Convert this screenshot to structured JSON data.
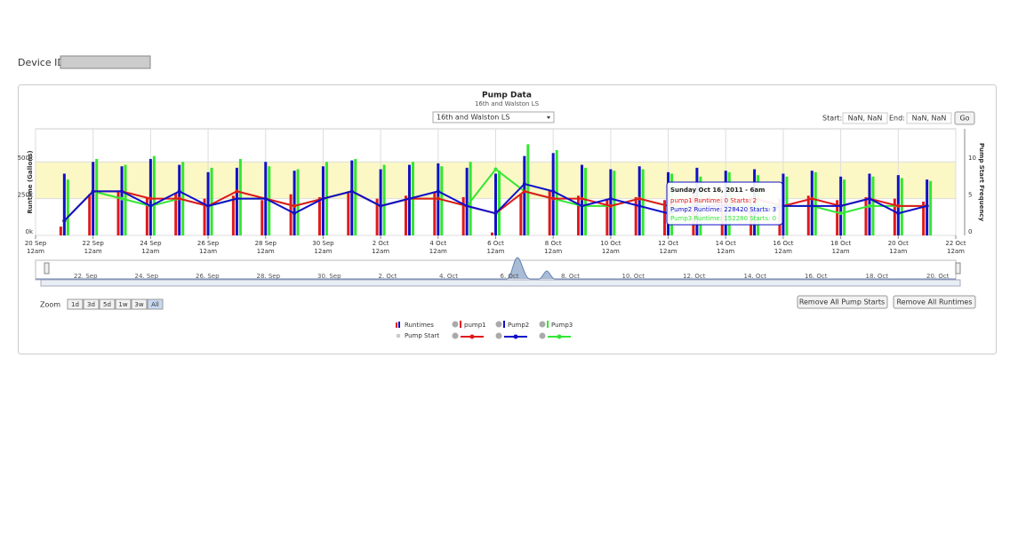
{
  "header": {
    "device_label": "Device ID",
    "device_value": ""
  },
  "controls": {
    "station": "16th and Walston LS",
    "start_label": "Start:",
    "start_value": "NaN, NaN",
    "end_label": "End:",
    "end_value": "NaN, NaN",
    "go": "Go",
    "zoom_label": "Zoom",
    "zoom": [
      "1d",
      "3d",
      "5d",
      "1w",
      "3w",
      "All"
    ],
    "zoom_selected": "All",
    "remove_starts": "Remove All Pump Starts",
    "remove_runtimes": "Remove All Runtimes"
  },
  "chart_data": {
    "type": "bar",
    "title": "Pump Data",
    "subtitle": "16th and Walston LS",
    "y_label": "Runtime (Gallons)",
    "y2_label": "Pump Start Frequency",
    "x": [
      "2011-09-21",
      "2011-09-22",
      "2011-09-23",
      "2011-09-24",
      "2011-09-25",
      "2011-09-26",
      "2011-09-27",
      "2011-09-28",
      "2011-09-29",
      "2011-09-30",
      "2011-10-01",
      "2011-10-02",
      "2011-10-03",
      "2011-10-04",
      "2011-10-05",
      "2011-10-06",
      "2011-10-07",
      "2011-10-08",
      "2011-10-09",
      "2011-10-10",
      "2011-10-11",
      "2011-10-12",
      "2011-10-13",
      "2011-10-14",
      "2011-10-15",
      "2011-10-16",
      "2011-10-17",
      "2011-10-18",
      "2011-10-19",
      "2011-10-20",
      "2011-10-21"
    ],
    "xlim": [
      "2011-09-20",
      "2011-10-22"
    ],
    "xticks": [
      {
        "value": "2011-09-20",
        "label": "20 Sep",
        "sub": "12am"
      },
      {
        "value": "2011-09-22",
        "label": "22 Sep",
        "sub": "12am"
      },
      {
        "value": "2011-09-24",
        "label": "24 Sep",
        "sub": "12am"
      },
      {
        "value": "2011-09-26",
        "label": "26 Sep",
        "sub": "12am"
      },
      {
        "value": "2011-09-28",
        "label": "28 Sep",
        "sub": "12am"
      },
      {
        "value": "2011-09-30",
        "label": "30 Sep",
        "sub": "12am"
      },
      {
        "value": "2011-10-02",
        "label": "2 Oct",
        "sub": "12am"
      },
      {
        "value": "2011-10-04",
        "label": "4 Oct",
        "sub": "12am"
      },
      {
        "value": "2011-10-06",
        "label": "6 Oct",
        "sub": "12am"
      },
      {
        "value": "2011-10-08",
        "label": "8 Oct",
        "sub": "12am"
      },
      {
        "value": "2011-10-10",
        "label": "10 Oct",
        "sub": "12am"
      },
      {
        "value": "2011-10-12",
        "label": "12 Oct",
        "sub": "12am"
      },
      {
        "value": "2011-10-14",
        "label": "14 Oct",
        "sub": "12am"
      },
      {
        "value": "2011-10-16",
        "label": "16 Oct",
        "sub": "12am"
      },
      {
        "value": "2011-10-18",
        "label": "18 Oct",
        "sub": "12am"
      },
      {
        "value": "2011-10-20",
        "label": "20 Oct",
        "sub": "12am"
      },
      {
        "value": "2011-10-22",
        "label": "22 Oct",
        "sub": "12am"
      }
    ],
    "ylim": [
      0,
      725000
    ],
    "yticks": [
      {
        "value": 0,
        "label": "0k"
      },
      {
        "value": 250000,
        "label": "250k"
      },
      {
        "value": 500000,
        "label": "500k"
      }
    ],
    "y2lim": [
      0,
      14.5
    ],
    "y2ticks": [
      0,
      5,
      10
    ],
    "plot_band": [
      250000,
      500000
    ],
    "plot_band_color": "#fbf8c6",
    "grid": true,
    "legend_runtimes": "Runtimes",
    "legend_starts": "Pump Start",
    "series": [
      {
        "name": "pump1",
        "type": "bar",
        "color": "#e0191b",
        "values": [
          60000,
          280000,
          300000,
          260000,
          290000,
          250000,
          270000,
          240000,
          280000,
          260000,
          300000,
          250000,
          270000,
          290000,
          260000,
          20000,
          280000,
          310000,
          270000,
          250000,
          260000,
          240000,
          280000,
          270000,
          260000,
          250000,
          270000,
          240000,
          260000,
          250000,
          230000
        ]
      },
      {
        "name": "Pump2",
        "type": "bar",
        "color": "#1010c8",
        "values": [
          420000,
          500000,
          470000,
          520000,
          480000,
          430000,
          460000,
          500000,
          440000,
          470000,
          510000,
          450000,
          480000,
          490000,
          460000,
          420000,
          540000,
          560000,
          480000,
          450000,
          470000,
          430000,
          460000,
          440000,
          450000,
          420000,
          440000,
          400000,
          420000,
          410000,
          380000
        ]
      },
      {
        "name": "Pump3",
        "type": "bar",
        "color": "#33e633",
        "values": [
          380000,
          520000,
          480000,
          540000,
          500000,
          460000,
          520000,
          470000,
          450000,
          500000,
          520000,
          480000,
          500000,
          470000,
          500000,
          440000,
          620000,
          580000,
          460000,
          440000,
          450000,
          420000,
          400000,
          430000,
          410000,
          400000,
          430000,
          380000,
          400000,
          390000,
          370000
        ]
      },
      {
        "type": "line",
        "axis": "y2",
        "color": "#33e633",
        "values": [
          2,
          6,
          5,
          4,
          5,
          4,
          5,
          5,
          4,
          5,
          6,
          4,
          5,
          5,
          4,
          9,
          6,
          5,
          4,
          4,
          5,
          4,
          4,
          4,
          4,
          4,
          4,
          3,
          4,
          4,
          4
        ]
      },
      {
        "type": "line",
        "axis": "y2",
        "color": "#e0191b",
        "values": [
          2,
          6,
          6,
          5,
          5,
          4,
          6,
          5,
          4,
          5,
          6,
          4,
          5,
          5,
          4,
          3,
          6,
          5,
          5,
          4,
          5,
          4,
          5,
          4,
          5,
          4,
          5,
          4,
          5,
          4,
          4
        ]
      },
      {
        "type": "line",
        "axis": "y2",
        "color": "#1010c8",
        "values": [
          2,
          6,
          6,
          4,
          6,
          4,
          5,
          5,
          3,
          5,
          6,
          4,
          5,
          6,
          4,
          3,
          7,
          6,
          4,
          5,
          4,
          3,
          4,
          4,
          3,
          4,
          4,
          4,
          5,
          3,
          4
        ]
      }
    ],
    "tooltip": {
      "title": "Sunday Oct 16, 2011 - 6am",
      "lines": [
        "pump1 Runtime: 0 Starts: 2",
        "Pump2 Runtime: 228420 Starts: 3",
        "Pump3 Runtime: 152280 Starts: 0"
      ]
    },
    "navigator_labels": [
      "22. Sep",
      "24. Sep",
      "26. Sep",
      "28. Sep",
      "30. Sep",
      "2. Oct",
      "4. Oct",
      "6. Oct",
      "8. Oct",
      "10. Oct",
      "12. Oct",
      "14. Oct",
      "16. Oct",
      "18. Oct",
      "20. Oct"
    ]
  }
}
